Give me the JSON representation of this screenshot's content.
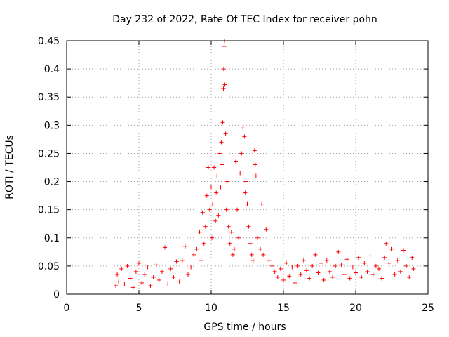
{
  "chart_data": {
    "type": "scatter",
    "title": "Day 232 of 2022, Rate Of TEC Index for receiver pohn",
    "xlabel": "GPS time / hours",
    "ylabel": "ROTI / TECUs",
    "xlim": [
      0,
      25
    ],
    "ylim": [
      0,
      0.45
    ],
    "xticks": [
      0,
      5,
      10,
      15,
      20,
      25
    ],
    "xtick_labels": [
      "0",
      "5",
      "10",
      "15",
      "20",
      "25"
    ],
    "yticks": [
      0,
      0.05,
      0.1,
      0.15,
      0.2,
      0.25,
      0.3,
      0.35,
      0.4,
      0.45
    ],
    "ytick_labels": [
      "0",
      "0.05",
      "0.1",
      "0.15",
      "0.2",
      "0.25",
      "0.3",
      "0.35",
      "0.4",
      "0.45"
    ],
    "grid": true,
    "marker": "+",
    "marker_color": "#ff0000",
    "series": [
      {
        "values": [
          [
            3.4,
            0.015
          ],
          [
            3.5,
            0.035
          ],
          [
            3.6,
            0.022
          ],
          [
            3.8,
            0.045
          ],
          [
            4.0,
            0.018
          ],
          [
            4.2,
            0.05
          ],
          [
            4.4,
            0.028
          ],
          [
            4.6,
            0.012
          ],
          [
            4.8,
            0.04
          ],
          [
            5.0,
            0.055
          ],
          [
            5.2,
            0.02
          ],
          [
            5.4,
            0.035
          ],
          [
            5.6,
            0.048
          ],
          [
            5.8,
            0.015
          ],
          [
            6.0,
            0.03
          ],
          [
            6.2,
            0.052
          ],
          [
            6.4,
            0.025
          ],
          [
            6.6,
            0.04
          ],
          [
            6.8,
            0.083
          ],
          [
            7.0,
            0.018
          ],
          [
            7.2,
            0.045
          ],
          [
            7.4,
            0.03
          ],
          [
            7.6,
            0.058
          ],
          [
            7.8,
            0.022
          ],
          [
            8.0,
            0.06
          ],
          [
            8.2,
            0.085
          ],
          [
            8.4,
            0.035
          ],
          [
            8.6,
            0.048
          ],
          [
            8.8,
            0.07
          ],
          [
            9.0,
            0.08
          ],
          [
            9.2,
            0.11
          ],
          [
            9.3,
            0.06
          ],
          [
            9.4,
            0.145
          ],
          [
            9.5,
            0.09
          ],
          [
            9.6,
            0.12
          ],
          [
            9.7,
            0.175
          ],
          [
            9.8,
            0.225
          ],
          [
            9.9,
            0.15
          ],
          [
            10.0,
            0.19
          ],
          [
            10.05,
            0.1
          ],
          [
            10.1,
            0.16
          ],
          [
            10.2,
            0.225
          ],
          [
            10.3,
            0.13
          ],
          [
            10.35,
            0.18
          ],
          [
            10.4,
            0.21
          ],
          [
            10.5,
            0.14
          ],
          [
            10.6,
            0.25
          ],
          [
            10.65,
            0.19
          ],
          [
            10.7,
            0.27
          ],
          [
            10.75,
            0.23
          ],
          [
            10.8,
            0.305
          ],
          [
            10.85,
            0.365
          ],
          [
            10.87,
            0.4
          ],
          [
            10.9,
            0.44
          ],
          [
            10.92,
            0.45
          ],
          [
            10.95,
            0.372
          ],
          [
            11.0,
            0.285
          ],
          [
            11.05,
            0.15
          ],
          [
            11.1,
            0.2
          ],
          [
            11.2,
            0.12
          ],
          [
            11.3,
            0.09
          ],
          [
            11.4,
            0.11
          ],
          [
            11.5,
            0.07
          ],
          [
            11.6,
            0.08
          ],
          [
            11.7,
            0.235
          ],
          [
            11.8,
            0.15
          ],
          [
            11.9,
            0.1
          ],
          [
            12.0,
            0.215
          ],
          [
            12.1,
            0.25
          ],
          [
            12.2,
            0.295
          ],
          [
            12.3,
            0.28
          ],
          [
            12.35,
            0.18
          ],
          [
            12.4,
            0.2
          ],
          [
            12.5,
            0.16
          ],
          [
            12.6,
            0.12
          ],
          [
            12.7,
            0.09
          ],
          [
            12.8,
            0.07
          ],
          [
            12.9,
            0.06
          ],
          [
            13.0,
            0.255
          ],
          [
            13.05,
            0.23
          ],
          [
            13.1,
            0.21
          ],
          [
            13.2,
            0.1
          ],
          [
            13.4,
            0.08
          ],
          [
            13.5,
            0.16
          ],
          [
            13.6,
            0.07
          ],
          [
            13.8,
            0.115
          ],
          [
            14.0,
            0.06
          ],
          [
            14.2,
            0.05
          ],
          [
            14.4,
            0.04
          ],
          [
            14.6,
            0.03
          ],
          [
            14.8,
            0.045
          ],
          [
            15.0,
            0.025
          ],
          [
            15.2,
            0.055
          ],
          [
            15.4,
            0.032
          ],
          [
            15.6,
            0.048
          ],
          [
            15.8,
            0.02
          ],
          [
            16.0,
            0.05
          ],
          [
            16.2,
            0.035
          ],
          [
            16.4,
            0.06
          ],
          [
            16.6,
            0.042
          ],
          [
            16.8,
            0.028
          ],
          [
            17.0,
            0.05
          ],
          [
            17.2,
            0.07
          ],
          [
            17.4,
            0.038
          ],
          [
            17.6,
            0.055
          ],
          [
            17.8,
            0.025
          ],
          [
            18.0,
            0.06
          ],
          [
            18.2,
            0.04
          ],
          [
            18.4,
            0.03
          ],
          [
            18.6,
            0.05
          ],
          [
            18.8,
            0.075
          ],
          [
            19.0,
            0.052
          ],
          [
            19.2,
            0.035
          ],
          [
            19.4,
            0.062
          ],
          [
            19.6,
            0.028
          ],
          [
            19.8,
            0.048
          ],
          [
            20.0,
            0.038
          ],
          [
            20.2,
            0.065
          ],
          [
            20.4,
            0.03
          ],
          [
            20.6,
            0.055
          ],
          [
            20.8,
            0.04
          ],
          [
            21.0,
            0.068
          ],
          [
            21.2,
            0.035
          ],
          [
            21.4,
            0.05
          ],
          [
            21.6,
            0.045
          ],
          [
            21.8,
            0.028
          ],
          [
            22.0,
            0.065
          ],
          [
            22.1,
            0.09
          ],
          [
            22.3,
            0.055
          ],
          [
            22.5,
            0.08
          ],
          [
            22.7,
            0.035
          ],
          [
            22.9,
            0.06
          ],
          [
            23.1,
            0.04
          ],
          [
            23.3,
            0.078
          ],
          [
            23.5,
            0.05
          ],
          [
            23.7,
            0.03
          ],
          [
            23.9,
            0.065
          ],
          [
            24.0,
            0.045
          ]
        ]
      }
    ]
  }
}
